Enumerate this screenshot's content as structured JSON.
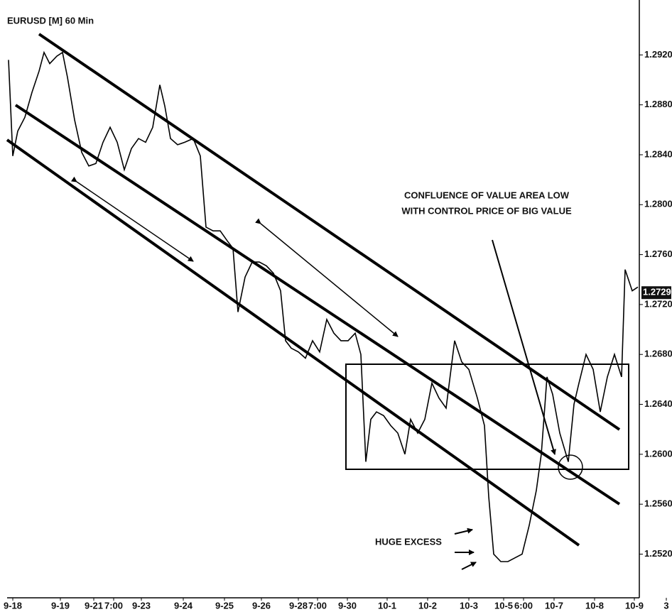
{
  "chart_data": {
    "type": "line",
    "title": "EURUSD [M] 60 Min",
    "color": "#000000",
    "x": [
      12,
      18,
      25,
      35,
      45,
      55,
      62,
      70,
      80,
      88,
      95,
      105,
      115,
      125,
      135,
      145,
      155,
      165,
      175,
      185,
      195,
      205,
      215,
      225,
      232,
      240,
      250,
      260,
      272,
      282,
      290,
      300,
      310,
      320,
      328,
      335,
      345,
      355,
      365,
      375,
      385,
      395,
      402,
      410,
      420,
      430,
      440,
      450,
      460,
      470,
      480,
      490,
      500,
      508,
      515,
      522,
      530,
      540,
      550,
      560,
      570,
      578,
      588,
      598,
      608,
      618,
      628,
      640,
      650,
      660,
      672,
      682,
      688,
      695,
      705,
      715,
      725,
      735,
      745,
      755,
      762,
      770,
      778,
      788,
      800,
      808,
      815,
      825,
      835,
      845,
      855,
      865,
      875,
      880,
      890,
      898
    ],
    "values": [
      1.2916,
      1.2839,
      1.2859,
      1.287,
      1.289,
      1.2907,
      1.2922,
      1.2913,
      1.2919,
      1.2922,
      1.2902,
      1.2868,
      1.2842,
      1.2831,
      1.2833,
      1.285,
      1.2862,
      1.285,
      1.2828,
      1.2845,
      1.2853,
      1.285,
      1.2862,
      1.2896,
      1.2879,
      1.2853,
      1.2848,
      1.285,
      1.2853,
      1.2839,
      1.2782,
      1.2779,
      1.2779,
      1.2771,
      1.2765,
      1.2714,
      1.2742,
      1.2754,
      1.2754,
      1.2751,
      1.2745,
      1.2731,
      1.2691,
      1.2685,
      1.2682,
      1.2677,
      1.2691,
      1.2682,
      1.2708,
      1.2697,
      1.2691,
      1.2691,
      1.2697,
      1.268,
      1.2594,
      1.2628,
      1.2634,
      1.2631,
      1.2623,
      1.2617,
      1.26,
      1.2628,
      1.2617,
      1.2628,
      1.2657,
      1.2645,
      1.2637,
      1.2691,
      1.2674,
      1.2668,
      1.2645,
      1.2623,
      1.2566,
      1.252,
      1.2514,
      1.2514,
      1.2517,
      1.252,
      1.2543,
      1.2571,
      1.26,
      1.2662,
      1.2648,
      1.2617,
      1.2594,
      1.264,
      1.2657,
      1.268,
      1.2668,
      1.2634,
      1.2662,
      1.268,
      1.2662,
      1.2748,
      1.2731,
      1.2734
    ],
    "xlim": [
      0,
      946
    ],
    "ylim": [
      1.2485,
      1.2964
    ],
    "yticks": [
      {
        "value": 1.252,
        "label": "1.25200"
      },
      {
        "value": 1.256,
        "label": "1.25600"
      },
      {
        "value": 1.26,
        "label": "1.26000"
      },
      {
        "value": 1.264,
        "label": "1.26400"
      },
      {
        "value": 1.268,
        "label": "1.26800"
      },
      {
        "value": 1.272,
        "label": "1.27200"
      },
      {
        "value": 1.276,
        "label": "1.27600"
      },
      {
        "value": 1.28,
        "label": "1.28000"
      },
      {
        "value": 1.284,
        "label": "1.28400"
      },
      {
        "value": 1.288,
        "label": "1.28800"
      },
      {
        "value": 1.292,
        "label": "1.29200"
      }
    ],
    "xticks": [
      {
        "value": 18,
        "label": "9-18"
      },
      {
        "value": 85,
        "label": "9-19"
      },
      {
        "value": 132,
        "label": "9-21"
      },
      {
        "value": 160,
        "label": "7:00"
      },
      {
        "value": 199,
        "label": "9-23"
      },
      {
        "value": 258,
        "label": "9-24"
      },
      {
        "value": 316,
        "label": "9-25"
      },
      {
        "value": 368,
        "label": "9-26"
      },
      {
        "value": 420,
        "label": "9-28"
      },
      {
        "value": 447,
        "label": "7:00"
      },
      {
        "value": 489,
        "label": "9-30"
      },
      {
        "value": 545,
        "label": "10-1"
      },
      {
        "value": 602,
        "label": "10-2"
      },
      {
        "value": 660,
        "label": "10-3"
      },
      {
        "value": 709,
        "label": "10-5"
      },
      {
        "value": 737,
        "label": "6:00"
      },
      {
        "value": 780,
        "label": "10-7"
      },
      {
        "value": 837,
        "label": "10-8"
      },
      {
        "value": 893,
        "label": "10-9"
      },
      {
        "value": 938,
        "label": "3"
      }
    ],
    "last_price": 1.27295,
    "annotations": [
      "CONFLUENCE OF VALUE AREA LOW",
      "WITH CONTROL PRICE OF BIG VALUE",
      "HUGE EXCESS"
    ]
  }
}
